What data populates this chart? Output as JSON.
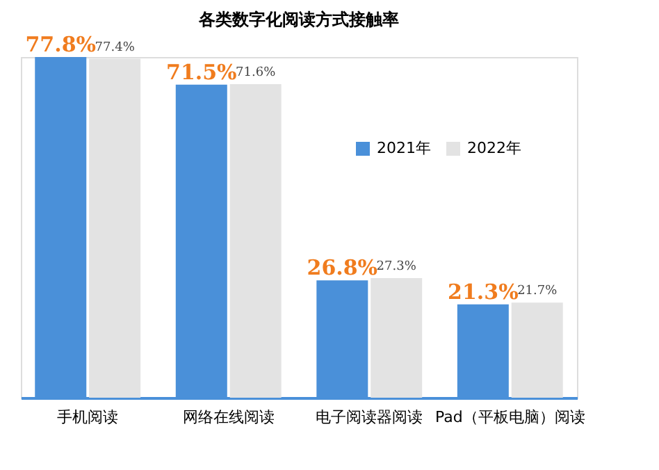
{
  "chart_data": {
    "type": "bar",
    "title": "各类数字化阅读方式接触率",
    "categories": [
      "手机阅读",
      "网络在线阅读",
      "电子阅读器阅读",
      "Pad（平板电脑）阅读"
    ],
    "series": [
      {
        "name": "2021年",
        "color": "#4a90d9",
        "values": [
          77.8,
          71.5,
          26.8,
          21.3
        ],
        "value_labels": [
          "77.8%",
          "71.5%",
          "26.8%",
          "21.3%"
        ]
      },
      {
        "name": "2022年",
        "color": "#e3e3e3",
        "values": [
          77.4,
          71.6,
          27.3,
          21.7
        ],
        "value_labels": [
          "77.4%",
          "71.6%",
          "27.3%",
          "21.7%"
        ]
      }
    ],
    "legend": "top right",
    "grid": false
  }
}
